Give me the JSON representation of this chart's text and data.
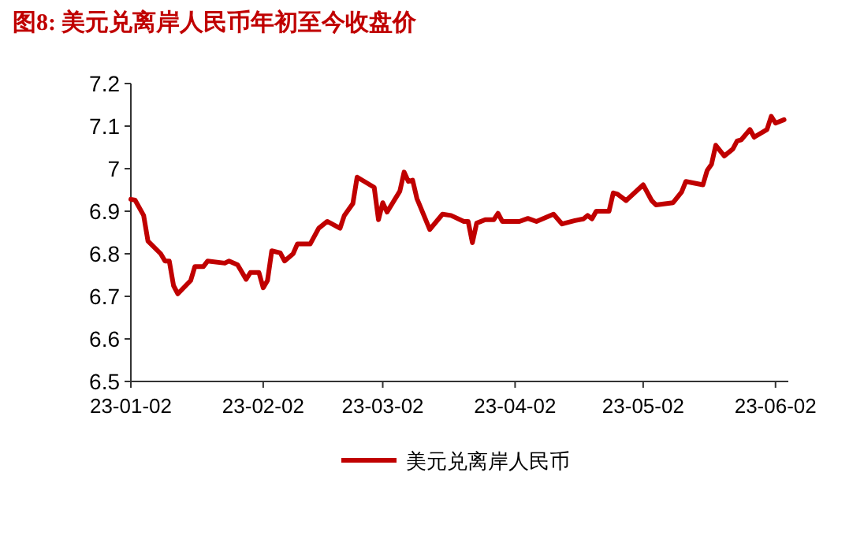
{
  "chart_data": {
    "type": "line",
    "title": "图8:  美元兑离岸人民币年初至今收盘价",
    "xlim": [
      "--01-02",
      "--06-05"
    ],
    "xticks": [
      {
        "value": "--01-02",
        "label": "23-01-02"
      },
      {
        "value": "--02-02",
        "label": "23-02-02"
      },
      {
        "value": "--03-02",
        "label": "23-03-02"
      },
      {
        "value": "--04-02",
        "label": "23-04-02"
      },
      {
        "value": "--05-02",
        "label": "23-05-02"
      },
      {
        "value": "--06-02",
        "label": "23-06-02"
      }
    ],
    "ylim": [
      6.5,
      7.2
    ],
    "yticks": [
      6.5,
      6.6,
      6.7,
      6.8,
      6.9,
      7,
      7.1,
      7.2
    ],
    "legend": "bottom",
    "grid": false,
    "line_style": "solid",
    "marker": "none",
    "x": [
      "--01-02",
      "--01-03",
      "--01-05",
      "--01-06",
      "--01-09",
      "--01-10",
      "--01-11",
      "--01-12",
      "--01-13",
      "--01-16",
      "--01-17",
      "--01-19",
      "--01-20",
      "--01-24",
      "--01-25",
      "--01-27",
      "--01-29",
      "--01-30",
      "--02-01",
      "--02-02",
      "--02-03",
      "--02-04",
      "--02-06",
      "--02-07",
      "--02-09",
      "--02-10",
      "--02-13",
      "--02-15",
      "--02-17",
      "--02-20",
      "--02-21",
      "--02-23",
      "--02-24",
      "--02-28",
      "--03-01",
      "--03-02",
      "--03-03",
      "--03-06",
      "--03-07",
      "--03-08",
      "--03-09",
      "--03-10",
      "--03-13",
      "--03-16",
      "--03-18",
      "--03-21",
      "--03-22",
      "--03-23",
      "--03-24",
      "--03-26",
      "--03-28",
      "--03-29",
      "--03-30",
      "--04-03",
      "--04-05",
      "--04-07",
      "--04-11",
      "--04-13",
      "--04-16",
      "--04-18",
      "--04-19",
      "--04-20",
      "--04-21",
      "--04-24",
      "--04-25",
      "--04-26",
      "--04-28",
      "--05-02",
      "--05-04",
      "--05-05",
      "--05-09",
      "--05-11",
      "--05-12",
      "--05-16",
      "--05-17",
      "--05-18",
      "--05-19",
      "--05-21",
      "--05-23",
      "--05-24",
      "--05-25",
      "--05-27",
      "--05-28",
      "--05-31",
      "--06-01",
      "--06-02",
      "--06-04"
    ],
    "series": [
      {
        "name": "美元兑离岸人民币",
        "color": "#c00000",
        "values": [
          6.928,
          6.926,
          6.89,
          6.83,
          6.8,
          6.783,
          6.783,
          6.725,
          6.706,
          6.737,
          6.77,
          6.77,
          6.783,
          6.778,
          6.783,
          6.774,
          6.74,
          6.756,
          6.756,
          6.72,
          6.737,
          6.807,
          6.802,
          6.783,
          6.8,
          6.823,
          6.823,
          6.86,
          6.876,
          6.86,
          6.89,
          6.918,
          6.98,
          6.956,
          6.88,
          6.92,
          6.898,
          6.947,
          6.992,
          6.97,
          6.973,
          6.93,
          6.857,
          6.893,
          6.89,
          6.876,
          6.876,
          6.826,
          6.872,
          6.88,
          6.88,
          6.895,
          6.876,
          6.876,
          6.883,
          6.876,
          6.893,
          6.87,
          6.878,
          6.882,
          6.89,
          6.882,
          6.9,
          6.9,
          6.943,
          6.94,
          6.925,
          6.962,
          6.925,
          6.915,
          6.92,
          6.945,
          6.97,
          6.962,
          6.996,
          7.01,
          7.055,
          7.03,
          7.046,
          7.065,
          7.068,
          7.092,
          7.074,
          7.092,
          7.123,
          7.107,
          7.115
        ]
      }
    ]
  }
}
